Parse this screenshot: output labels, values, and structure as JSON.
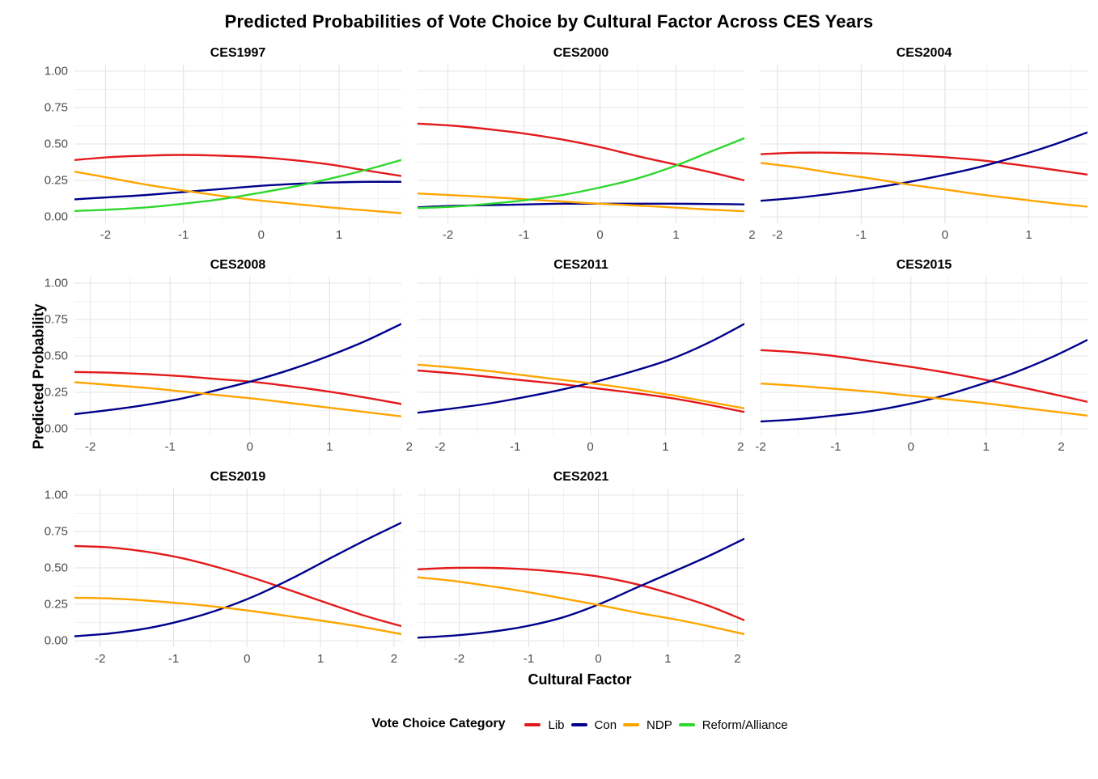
{
  "title": "Predicted Probabilities of Vote Choice by Cultural Factor Across CES Years",
  "axes": {
    "x_label": "Cultural Factor",
    "y_label": "Predicted Probability",
    "y_tick_labels": [
      "0.00",
      "0.25",
      "0.50",
      "0.75",
      "1.00"
    ]
  },
  "legend": {
    "title": "Vote Choice Category",
    "entries": [
      {
        "label": "Lib",
        "color": "#e31a1c"
      },
      {
        "label": "Con",
        "color": "#00008b"
      },
      {
        "label": "NDP",
        "color": "#ffa500"
      },
      {
        "label": "Reform/Alliance",
        "color": "#2ed82e"
      }
    ]
  },
  "colors": {
    "grid_major": "#e3e3e3",
    "grid_minor": "#f1f1f1",
    "tick_text": "#4d4d4d"
  },
  "chart_data": {
    "type": "line",
    "grid": "on",
    "legend_position": "bottom",
    "y_domain": [
      0,
      1
    ],
    "y_ticks": [
      0,
      0.25,
      0.5,
      0.75,
      1
    ],
    "y_minor_ticks": [
      0.125,
      0.375,
      0.625,
      0.875
    ],
    "facets": [
      {
        "title": "CES1997",
        "show_y_axis": true,
        "x_domain": [
          -2.4,
          1.8
        ],
        "x_ticks": [
          -2,
          -1,
          0,
          1
        ],
        "x": [
          -2.4,
          -1.93,
          -1.47,
          -1.0,
          -0.53,
          -0.07,
          0.4,
          0.87,
          1.33,
          1.8
        ],
        "series": [
          {
            "name": "Lib",
            "values": [
              0.39,
              0.41,
              0.42,
              0.425,
              0.42,
              0.41,
              0.39,
              0.36,
              0.32,
              0.28
            ]
          },
          {
            "name": "Con",
            "values": [
              0.12,
              0.135,
              0.15,
              0.17,
              0.19,
              0.21,
              0.225,
              0.235,
              0.24,
              0.24
            ]
          },
          {
            "name": "NDP",
            "values": [
              0.31,
              0.265,
              0.22,
              0.18,
              0.145,
              0.115,
              0.09,
              0.065,
              0.045,
              0.025
            ]
          },
          {
            "name": "Reform/Alliance",
            "values": [
              0.04,
              0.05,
              0.065,
              0.09,
              0.12,
              0.16,
              0.205,
              0.26,
              0.32,
              0.39
            ]
          }
        ]
      },
      {
        "title": "CES2000",
        "show_y_axis": false,
        "x_domain": [
          -2.4,
          1.9
        ],
        "x_ticks": [
          -2,
          -1,
          0,
          1,
          2
        ],
        "x": [
          -2.4,
          -1.92,
          -1.44,
          -0.97,
          -0.49,
          -0.01,
          0.47,
          0.94,
          1.42,
          1.9
        ],
        "series": [
          {
            "name": "Lib",
            "values": [
              0.64,
              0.625,
              0.6,
              0.57,
              0.53,
              0.48,
              0.42,
              0.365,
              0.31,
              0.25
            ]
          },
          {
            "name": "Con",
            "values": [
              0.065,
              0.075,
              0.08,
              0.085,
              0.09,
              0.09,
              0.09,
              0.09,
              0.088,
              0.085
            ]
          },
          {
            "name": "NDP",
            "values": [
              0.16,
              0.148,
              0.135,
              0.12,
              0.105,
              0.09,
              0.078,
              0.065,
              0.05,
              0.038
            ]
          },
          {
            "name": "Reform/Alliance",
            "values": [
              0.06,
              0.07,
              0.09,
              0.115,
              0.15,
              0.2,
              0.26,
              0.34,
              0.44,
              0.54
            ]
          }
        ]
      },
      {
        "title": "CES2004",
        "show_y_axis": false,
        "x_domain": [
          -2.2,
          1.7
        ],
        "x_ticks": [
          -2,
          -1,
          0,
          1
        ],
        "x": [
          -2.2,
          -1.77,
          -1.33,
          -0.9,
          -0.47,
          -0.03,
          0.4,
          0.83,
          1.27,
          1.7
        ],
        "series": [
          {
            "name": "Lib",
            "values": [
              0.43,
              0.44,
              0.44,
              0.435,
              0.425,
              0.41,
              0.39,
              0.36,
              0.325,
              0.29
            ]
          },
          {
            "name": "Con",
            "values": [
              0.11,
              0.13,
              0.16,
              0.195,
              0.235,
              0.285,
              0.34,
              0.41,
              0.49,
              0.58
            ]
          },
          {
            "name": "NDP",
            "values": [
              0.37,
              0.34,
              0.3,
              0.265,
              0.225,
              0.19,
              0.155,
              0.125,
              0.095,
              0.07
            ]
          }
        ]
      },
      {
        "title": "CES2008",
        "show_y_axis": true,
        "x_domain": [
          -2.2,
          1.9
        ],
        "x_ticks": [
          -2,
          -1,
          0,
          1,
          2
        ],
        "x": [
          -2.2,
          -1.74,
          -1.29,
          -0.83,
          -0.38,
          0.08,
          0.53,
          0.99,
          1.44,
          1.9
        ],
        "series": [
          {
            "name": "Lib",
            "values": [
              0.39,
              0.385,
              0.375,
              0.36,
              0.34,
              0.32,
              0.29,
              0.255,
              0.215,
              0.17
            ]
          },
          {
            "name": "Con",
            "values": [
              0.1,
              0.13,
              0.165,
              0.21,
              0.27,
              0.335,
              0.41,
              0.5,
              0.6,
              0.72
            ]
          },
          {
            "name": "NDP",
            "values": [
              0.32,
              0.3,
              0.28,
              0.255,
              0.23,
              0.205,
              0.175,
              0.145,
              0.115,
              0.085
            ]
          }
        ]
      },
      {
        "title": "CES2011",
        "show_y_axis": false,
        "x_domain": [
          -2.3,
          2.05
        ],
        "x_ticks": [
          -2,
          -1,
          0,
          1,
          2
        ],
        "x": [
          -2.3,
          -1.82,
          -1.33,
          -0.85,
          -0.37,
          0.12,
          0.6,
          1.08,
          1.57,
          2.05
        ],
        "series": [
          {
            "name": "Lib",
            "values": [
              0.4,
              0.38,
              0.355,
              0.33,
              0.305,
              0.275,
              0.245,
              0.21,
              0.165,
              0.115
            ]
          },
          {
            "name": "Con",
            "values": [
              0.11,
              0.14,
              0.175,
              0.22,
              0.27,
              0.33,
              0.4,
              0.48,
              0.59,
              0.72
            ]
          },
          {
            "name": "NDP",
            "values": [
              0.44,
              0.42,
              0.395,
              0.365,
              0.335,
              0.305,
              0.27,
              0.23,
              0.185,
              0.14
            ]
          }
        ]
      },
      {
        "title": "CES2015",
        "show_y_axis": false,
        "x_domain": [
          -2.0,
          2.35
        ],
        "x_ticks": [
          -2,
          -1,
          0,
          1,
          2
        ],
        "x": [
          -2.0,
          -1.52,
          -1.03,
          -0.55,
          -0.07,
          0.42,
          0.9,
          1.38,
          1.87,
          2.35
        ],
        "series": [
          {
            "name": "Lib",
            "values": [
              0.54,
              0.525,
              0.5,
              0.465,
              0.43,
              0.39,
              0.345,
              0.295,
              0.24,
              0.185
            ]
          },
          {
            "name": "Con",
            "values": [
              0.05,
              0.065,
              0.09,
              0.12,
              0.165,
              0.225,
              0.3,
              0.385,
              0.49,
              0.61
            ]
          },
          {
            "name": "NDP",
            "values": [
              0.31,
              0.295,
              0.275,
              0.255,
              0.23,
              0.205,
              0.18,
              0.15,
              0.12,
              0.09
            ]
          }
        ]
      },
      {
        "title": "CES2019",
        "show_y_axis": true,
        "x_domain": [
          -2.35,
          2.1
        ],
        "x_ticks": [
          -2,
          -1,
          0,
          1,
          2
        ],
        "x": [
          -2.35,
          -1.86,
          -1.36,
          -0.87,
          -0.37,
          0.12,
          0.62,
          1.11,
          1.61,
          2.1
        ],
        "series": [
          {
            "name": "Lib",
            "values": [
              0.65,
              0.64,
              0.61,
              0.565,
              0.5,
              0.425,
              0.34,
              0.255,
              0.17,
              0.1
            ]
          },
          {
            "name": "Con",
            "values": [
              0.03,
              0.05,
              0.085,
              0.14,
              0.215,
              0.31,
              0.43,
              0.56,
              0.69,
              0.81
            ]
          },
          {
            "name": "NDP",
            "values": [
              0.295,
              0.29,
              0.275,
              0.255,
              0.23,
              0.2,
              0.165,
              0.13,
              0.09,
              0.045
            ]
          }
        ]
      },
      {
        "title": "CES2021",
        "show_y_axis": false,
        "x_domain": [
          -2.6,
          2.1
        ],
        "x_ticks": [
          -2,
          -1,
          0,
          1,
          2
        ],
        "x": [
          -2.6,
          -2.08,
          -1.56,
          -1.03,
          -0.51,
          0.01,
          0.53,
          1.06,
          1.58,
          2.1
        ],
        "series": [
          {
            "name": "Lib",
            "values": [
              0.49,
              0.5,
              0.5,
              0.49,
              0.47,
              0.44,
              0.39,
              0.32,
              0.24,
              0.14
            ]
          },
          {
            "name": "Con",
            "values": [
              0.02,
              0.035,
              0.06,
              0.1,
              0.16,
              0.25,
              0.36,
              0.47,
              0.58,
              0.7
            ]
          },
          {
            "name": "NDP",
            "values": [
              0.435,
              0.41,
              0.375,
              0.335,
              0.29,
              0.245,
              0.195,
              0.15,
              0.1,
              0.045
            ]
          }
        ]
      }
    ]
  }
}
